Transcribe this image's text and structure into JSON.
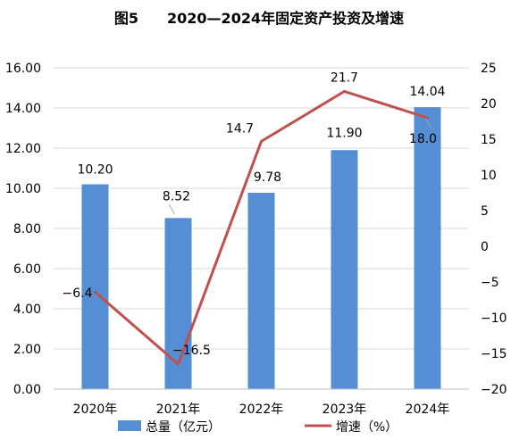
{
  "chart_data": {
    "type": "bar+line",
    "title": "图5　　2020—2024年固定资产投资及增速",
    "categories": [
      "2020年",
      "2021年",
      "2022年",
      "2023年",
      "2024年"
    ],
    "series": [
      {
        "name": "总量（亿元）",
        "type": "bar",
        "axis": "left",
        "values": [
          10.2,
          8.52,
          9.78,
          11.9,
          14.04
        ],
        "labels": [
          "10.20",
          "8.52",
          "9.78",
          "11.90",
          "14.04"
        ],
        "color": "#558ED5"
      },
      {
        "name": "增速（%）",
        "type": "line",
        "axis": "right",
        "values": [
          -6.4,
          -16.5,
          14.7,
          21.7,
          18.0
        ],
        "labels": [
          "−6.4",
          "−16.5",
          "14.7",
          "21.7",
          "18.0"
        ],
        "color": "#C0504D"
      }
    ],
    "y_left": {
      "min": 0,
      "max": 16,
      "step": 2,
      "tick_labels": [
        "0.00",
        "2.00",
        "4.00",
        "6.00",
        "8.00",
        "10.00",
        "12.00",
        "14.00",
        "16.00"
      ]
    },
    "y_right": {
      "min": -20,
      "max": 25,
      "step": 5,
      "tick_labels": [
        "−20",
        "−15",
        "−10",
        "−5",
        "0",
        "5",
        "10",
        "15",
        "20",
        "25"
      ]
    },
    "grid": true,
    "legend": "bottom"
  }
}
